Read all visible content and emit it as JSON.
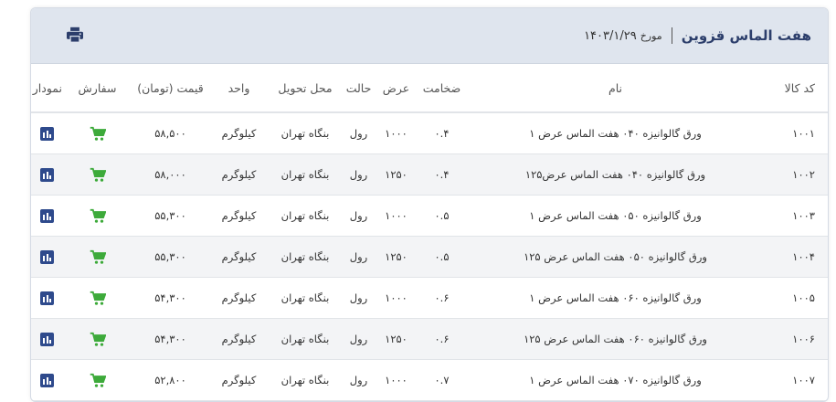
{
  "header": {
    "title": "هفت الماس قزوین",
    "date_label": "مورخ",
    "date": "۱۴۰۳/۱/۲۹",
    "print_icon": "print-icon"
  },
  "columns": [
    "کد کالا",
    "نام",
    "ضخامت",
    "عرض",
    "حالت",
    "محل تحویل",
    "واحد",
    "قیمت (تومان)",
    "سفارش",
    "نمودار قیمت"
  ],
  "colors": {
    "header_bg": "#dfe5ee",
    "title": "#2c3e6b",
    "cart": "#3daa3a",
    "chart_icon": "#2e4a8c"
  },
  "rows": [
    {
      "code": "۱۰۰۱",
      "name": "ورق گالوانیزه ۰۴۰ هفت الماس عرض ۱",
      "thickness": "۰.۴",
      "width": "۱۰۰۰",
      "state": "رول",
      "location": "بنگاه تهران",
      "unit": "کیلوگرم",
      "price": "۵۸,۵۰۰"
    },
    {
      "code": "۱۰۰۲",
      "name": "ورق گالوانیزه ۰۴۰ هفت الماس عرض۱۲۵",
      "thickness": "۰.۴",
      "width": "۱۲۵۰",
      "state": "رول",
      "location": "بنگاه تهران",
      "unit": "کیلوگرم",
      "price": "۵۸,۰۰۰"
    },
    {
      "code": "۱۰۰۳",
      "name": "ورق گالوانیزه ۰۵۰ هفت الماس عرض ۱",
      "thickness": "۰.۵",
      "width": "۱۰۰۰",
      "state": "رول",
      "location": "بنگاه تهران",
      "unit": "کیلوگرم",
      "price": "۵۵,۳۰۰"
    },
    {
      "code": "۱۰۰۴",
      "name": "ورق گالوانیزه ۰۵۰ هفت الماس عرض ۱۲۵",
      "thickness": "۰.۵",
      "width": "۱۲۵۰",
      "state": "رول",
      "location": "بنگاه تهران",
      "unit": "کیلوگرم",
      "price": "۵۵,۳۰۰"
    },
    {
      "code": "۱۰۰۵",
      "name": "ورق گالوانیزه ۰۶۰ هفت الماس عرض ۱",
      "thickness": "۰.۶",
      "width": "۱۰۰۰",
      "state": "رول",
      "location": "بنگاه تهران",
      "unit": "کیلوگرم",
      "price": "۵۴,۳۰۰"
    },
    {
      "code": "۱۰۰۶",
      "name": "ورق گالوانیزه ۰۶۰ هفت الماس عرض ۱۲۵",
      "thickness": "۰.۶",
      "width": "۱۲۵۰",
      "state": "رول",
      "location": "بنگاه تهران",
      "unit": "کیلوگرم",
      "price": "۵۴,۳۰۰"
    },
    {
      "code": "۱۰۰۷",
      "name": "ورق گالوانیزه ۰۷۰ هفت الماس عرض ۱",
      "thickness": "۰.۷",
      "width": "۱۰۰۰",
      "state": "رول",
      "location": "بنگاه تهران",
      "unit": "کیلوگرم",
      "price": "۵۲,۸۰۰"
    }
  ]
}
